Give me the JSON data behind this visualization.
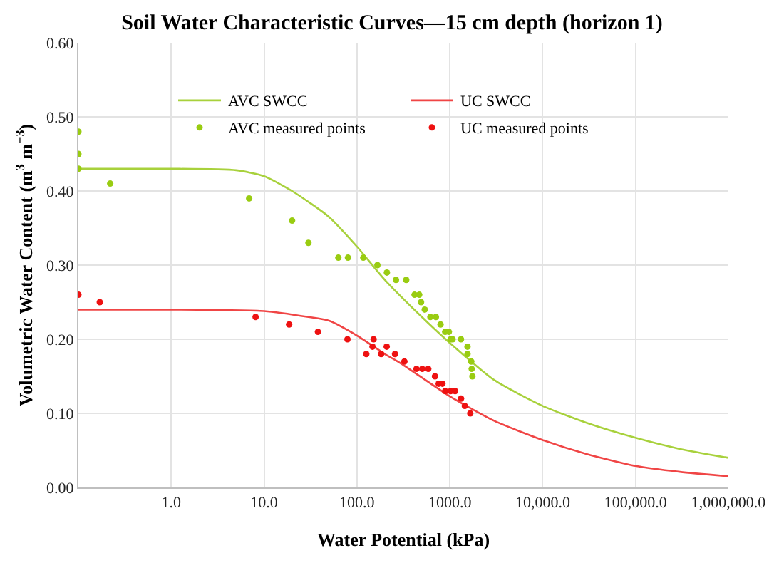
{
  "chart_data": {
    "type": "scatter",
    "title": "Soil Water Characteristic Curves—15 cm depth (horizon 1)",
    "xlabel": "Water Potential (kPa)",
    "ylabel": "Volumetric Water Content (m$^{3}$ m$^{−3}$)",
    "log": "x",
    "grid": true,
    "legend": "top",
    "xlim": [
      0.1,
      1000000
    ],
    "xticks": [
      {
        "value": 0.1,
        "label": null
      },
      {
        "value": 1,
        "label": "1.0"
      },
      {
        "value": 10,
        "label": "10.0"
      },
      {
        "value": 100,
        "label": "100.0"
      },
      {
        "value": 1000,
        "label": "1000.0"
      },
      {
        "value": 10000,
        "label": "10,000.0"
      },
      {
        "value": 100000,
        "label": "100,000.0"
      },
      {
        "value": 1000000,
        "label": "1,000,000.0"
      }
    ],
    "ylim": [
      0,
      0.6
    ],
    "yticks": [
      {
        "value": 0,
        "label": "0.00"
      },
      {
        "value": 0.1,
        "label": "0.10"
      },
      {
        "value": 0.2,
        "label": "0.20"
      },
      {
        "value": 0.3,
        "label": "0.30"
      },
      {
        "value": 0.4,
        "label": "0.40"
      },
      {
        "value": 0.5,
        "label": "0.50"
      },
      {
        "value": 0.6,
        "label": "0.60"
      }
    ],
    "series": [
      {
        "name": "AVC SWCC",
        "type": "line",
        "color": "#a8d13c",
        "x": [
          0.1,
          1,
          5,
          10,
          20,
          50,
          100,
          200,
          500,
          1000,
          3000,
          10000,
          30000,
          100000,
          300000,
          1000000
        ],
        "values": [
          0.43,
          0.43,
          0.428,
          0.42,
          0.4,
          0.365,
          0.325,
          0.28,
          0.23,
          0.195,
          0.145,
          0.11,
          0.087,
          0.067,
          0.052,
          0.04
        ]
      },
      {
        "name": "UC SWCC",
        "type": "line",
        "color": "#f04545",
        "x": [
          0.1,
          1,
          10,
          30,
          50,
          100,
          200,
          300,
          1000,
          3000,
          10000,
          30000,
          100000,
          300000,
          1000000
        ],
        "values": [
          0.24,
          0.24,
          0.238,
          0.23,
          0.225,
          0.205,
          0.18,
          0.167,
          0.123,
          0.09,
          0.064,
          0.045,
          0.029,
          0.021,
          0.015
        ]
      },
      {
        "name": "AVC measured points",
        "marker": "circle",
        "color": "#99cc11",
        "x": [
          0.1,
          0.1,
          0.1,
          0.22,
          6.9,
          20,
          30,
          63,
          80,
          117,
          166,
          210,
          263,
          339,
          417,
          468,
          490,
          537,
          617,
          708,
          794,
          891,
          977,
          1020,
          1070,
          1318,
          1550,
          1550,
          1700,
          1720,
          1750
        ],
        "values": [
          0.48,
          0.45,
          0.43,
          0.41,
          0.39,
          0.36,
          0.33,
          0.31,
          0.31,
          0.31,
          0.3,
          0.29,
          0.28,
          0.28,
          0.26,
          0.26,
          0.25,
          0.24,
          0.23,
          0.23,
          0.22,
          0.21,
          0.21,
          0.2,
          0.2,
          0.2,
          0.19,
          0.18,
          0.17,
          0.16,
          0.15
        ]
      },
      {
        "name": "UC measured points",
        "marker": "circle",
        "color": "#ee1111",
        "x": [
          0.1,
          0.17,
          8.1,
          18.6,
          38,
          79,
          126,
          147,
          151,
          182,
          209,
          257,
          324,
          437,
          504,
          586,
          692,
          759,
          832,
          891,
          1020,
          1140,
          1320,
          1450,
          1660
        ],
        "values": [
          0.26,
          0.25,
          0.23,
          0.22,
          0.21,
          0.2,
          0.18,
          0.19,
          0.2,
          0.18,
          0.19,
          0.18,
          0.17,
          0.16,
          0.16,
          0.16,
          0.15,
          0.14,
          0.14,
          0.13,
          0.13,
          0.13,
          0.12,
          0.11,
          0.1
        ]
      }
    ]
  }
}
